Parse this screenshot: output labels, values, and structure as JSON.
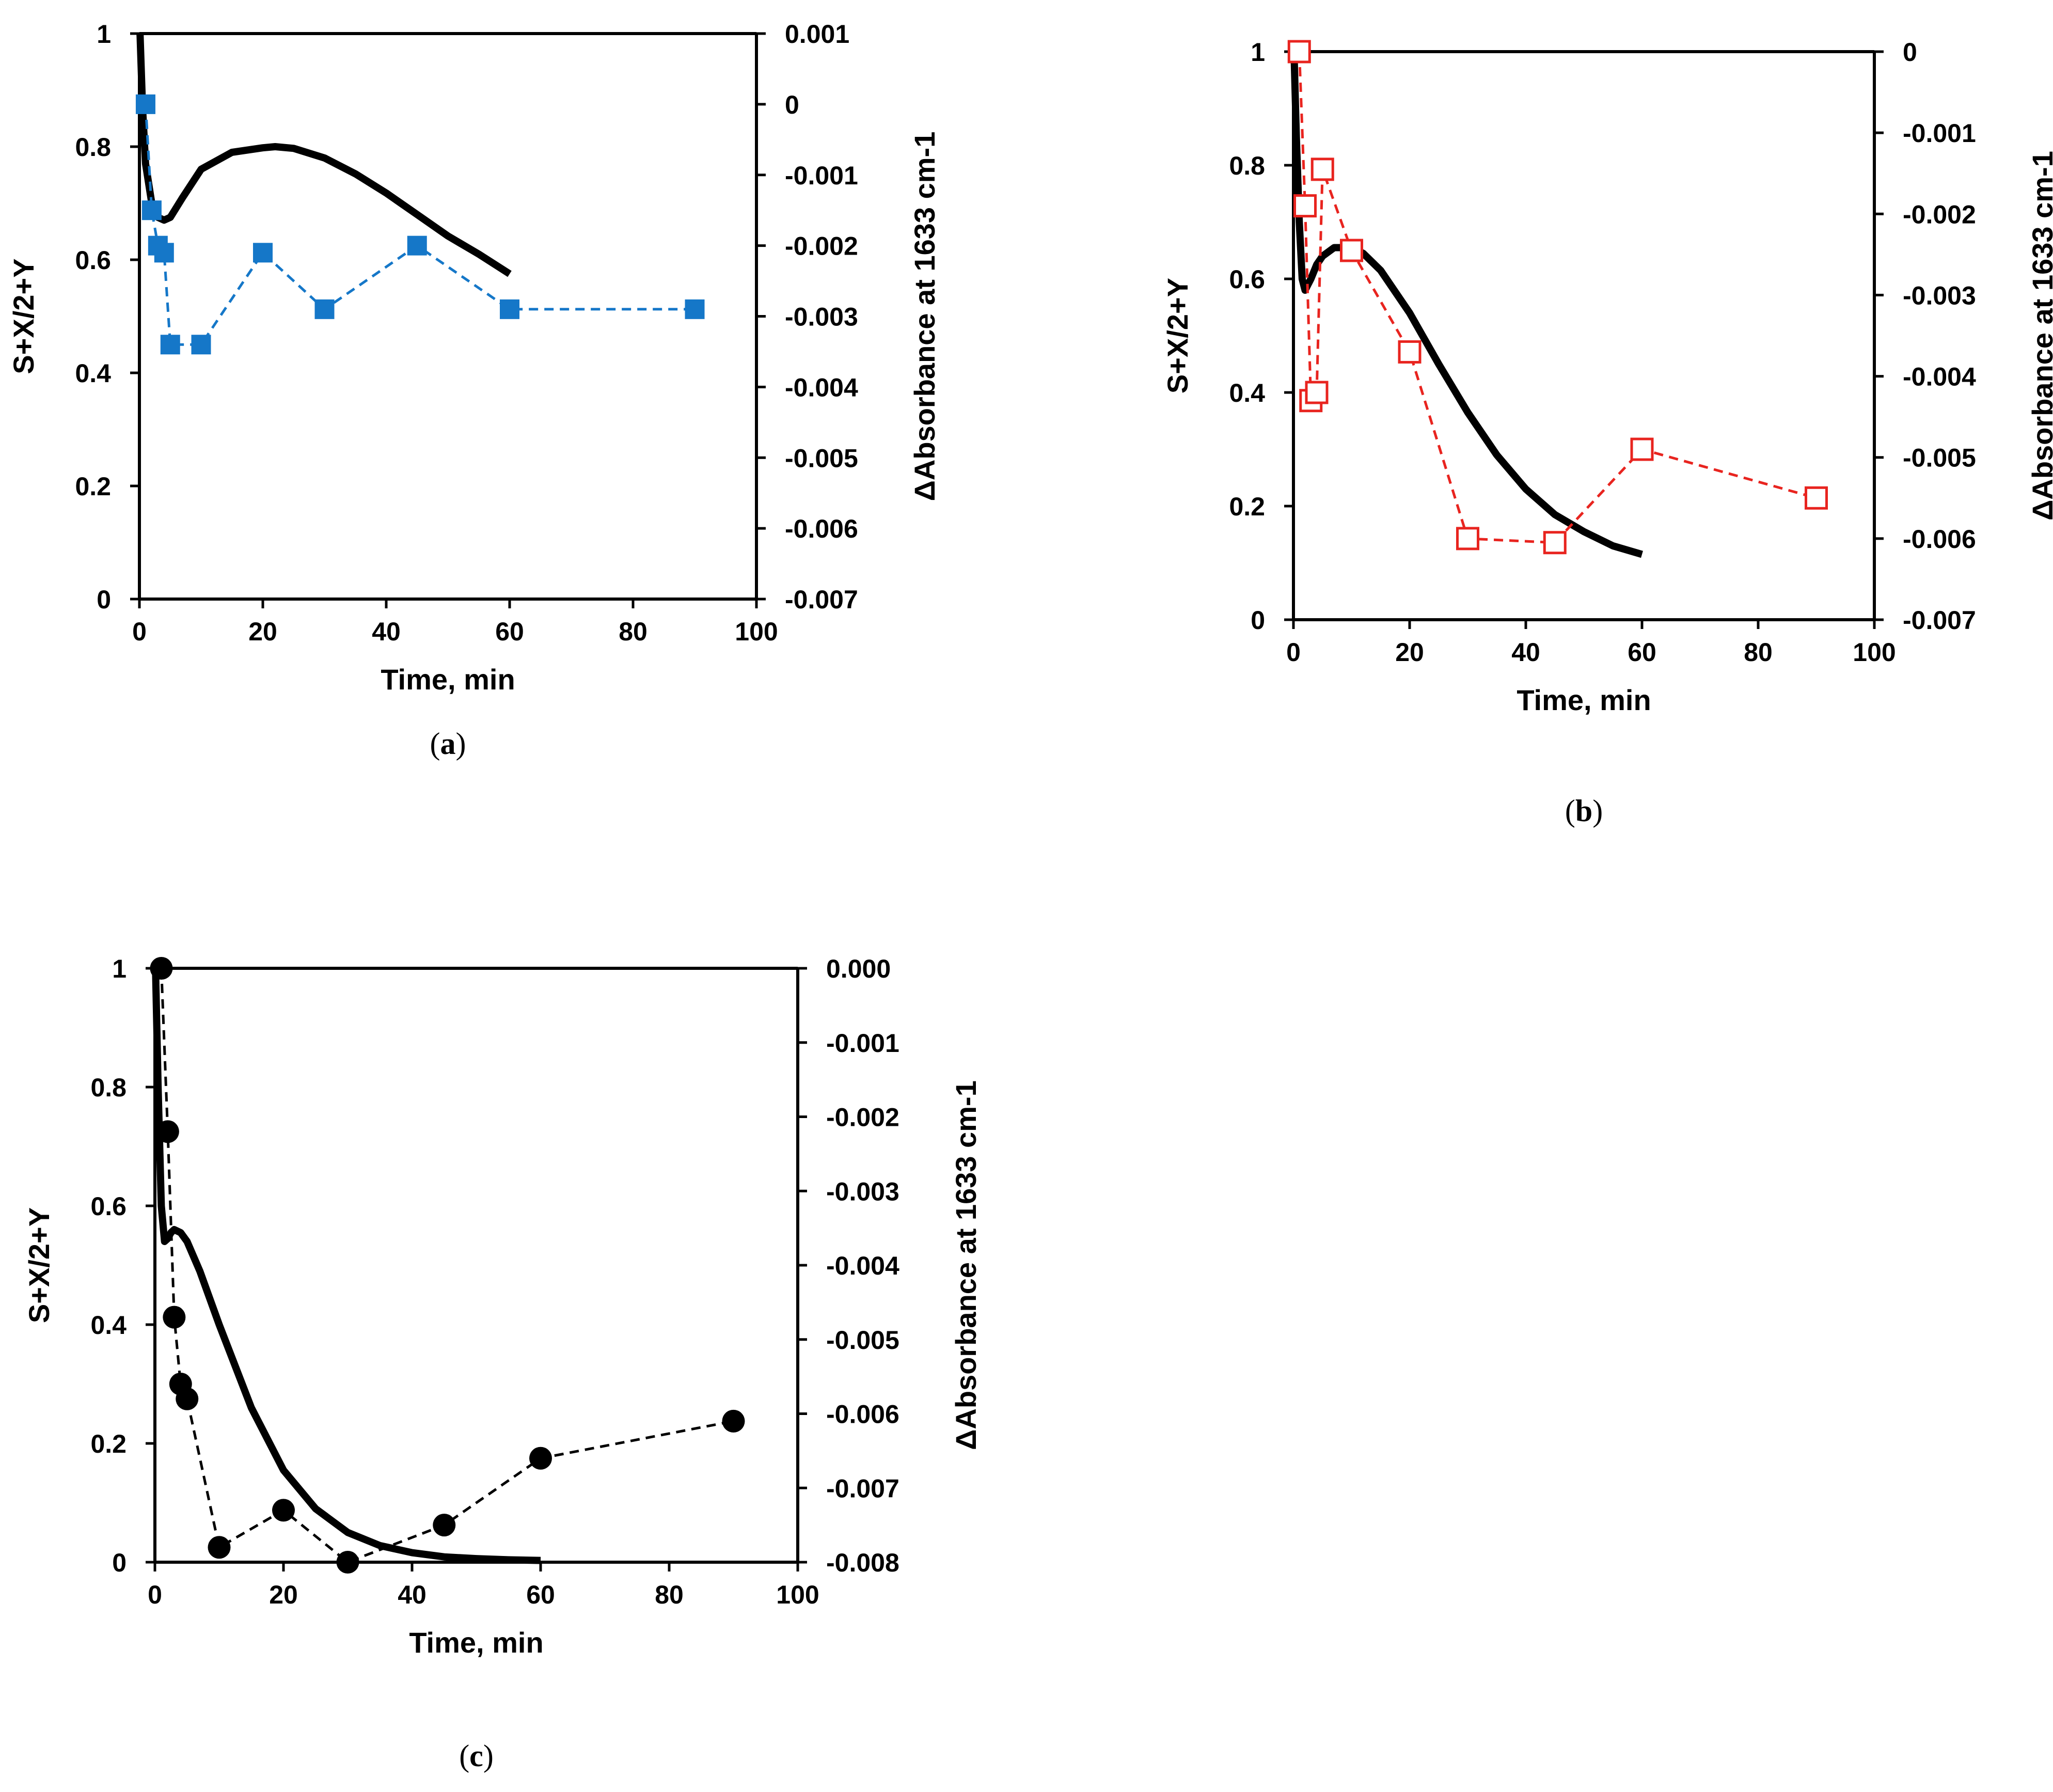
{
  "chart_data": [
    {
      "id": "a",
      "type": "line",
      "caption_prefix": "(",
      "caption_letter": "a",
      "caption_suffix": ")",
      "xlabel": "Time, min",
      "ylabel": "S+X/2+Y",
      "y2label": "ΔAbsorbance at 1633 cm-1",
      "xlim": [
        0,
        100
      ],
      "ylim": [
        0,
        1
      ],
      "y2lim": [
        -0.007,
        0.001
      ],
      "xticks": [
        "0",
        "20",
        "40",
        "60",
        "80",
        "100"
      ],
      "yticks": [
        "0",
        "0.2",
        "0.4",
        "0.6",
        "0.8",
        "1"
      ],
      "y2ticks": [
        "-0.007",
        "-0.006",
        "-0.005",
        "-0.004",
        "-0.003",
        "-0.002",
        "-0.001",
        "0",
        "0.001"
      ],
      "series": [
        {
          "kind": "model",
          "axis": "left",
          "style": "solid",
          "color": "#000000",
          "x": [
            0.1,
            0.5,
            1,
            2,
            3,
            4,
            5,
            7,
            10,
            15,
            20,
            22,
            25,
            30,
            35,
            40,
            45,
            50,
            55,
            60
          ],
          "y": [
            1.0,
            0.87,
            0.77,
            0.7,
            0.675,
            0.67,
            0.675,
            0.71,
            0.76,
            0.79,
            0.798,
            0.8,
            0.797,
            0.78,
            0.752,
            0.718,
            0.68,
            0.642,
            0.61,
            0.575
          ]
        },
        {
          "kind": "measured",
          "axis": "right",
          "style": "dashed",
          "marker": "filled-square",
          "color": "#1577c8",
          "x": [
            1,
            2,
            3,
            4,
            5,
            10,
            20,
            30,
            45,
            60,
            90
          ],
          "y": [
            0.0,
            -0.0015,
            -0.002,
            -0.0021,
            -0.0034,
            -0.0034,
            -0.0021,
            -0.0029,
            -0.002,
            -0.0029,
            -0.0029
          ]
        }
      ]
    },
    {
      "id": "b",
      "type": "line",
      "caption_prefix": "(",
      "caption_letter": "b",
      "caption_suffix": ")",
      "xlabel": "Time, min",
      "ylabel": "S+X/2+Y",
      "y2label": "ΔAbsorbance at 1633 cm-1",
      "xlim": [
        0,
        100
      ],
      "ylim": [
        0,
        1
      ],
      "y2lim": [
        -0.007,
        0.0
      ],
      "xticks": [
        "0",
        "20",
        "40",
        "60",
        "80",
        "100"
      ],
      "yticks": [
        "0",
        "0.2",
        "0.4",
        "0.6",
        "0.8",
        "1"
      ],
      "y2ticks": [
        "-0.007",
        "-0.006",
        "-0.005",
        "-0.004",
        "-0.003",
        "-0.002",
        "-0.001",
        "0"
      ],
      "series": [
        {
          "kind": "model",
          "axis": "left",
          "style": "solid",
          "color": "#000000",
          "x": [
            0.1,
            0.5,
            1,
            1.5,
            2,
            3,
            4,
            5,
            7,
            10,
            12,
            15,
            20,
            25,
            30,
            35,
            40,
            45,
            50,
            55,
            60
          ],
          "y": [
            1.0,
            0.85,
            0.7,
            0.6,
            0.58,
            0.6,
            0.625,
            0.64,
            0.655,
            0.655,
            0.645,
            0.615,
            0.54,
            0.45,
            0.365,
            0.29,
            0.23,
            0.185,
            0.155,
            0.13,
            0.115
          ]
        },
        {
          "kind": "measured",
          "axis": "right",
          "style": "dashed",
          "marker": "open-square",
          "color": "#e8241f",
          "x": [
            1,
            2,
            3,
            4,
            5,
            10,
            20,
            30,
            45,
            60,
            90
          ],
          "y": [
            0.0,
            -0.0019,
            -0.0043,
            -0.0042,
            -0.00145,
            -0.00245,
            -0.0037,
            -0.006,
            -0.00605,
            -0.0049,
            -0.0055
          ]
        }
      ]
    },
    {
      "id": "c",
      "type": "line",
      "caption_prefix": "(",
      "caption_letter": "c",
      "caption_suffix": ")",
      "xlabel": "Time, min",
      "ylabel": "S+X/2+Y",
      "y2label": "ΔAbsorbance at 1633 cm-1",
      "xlim": [
        0,
        100
      ],
      "ylim": [
        0,
        1
      ],
      "y2lim": [
        -0.008,
        0.0
      ],
      "xticks": [
        "0",
        "20",
        "40",
        "60",
        "80",
        "100"
      ],
      "yticks": [
        "0",
        "0.2",
        "0.4",
        "0.6",
        "0.8",
        "1"
      ],
      "y2ticks": [
        "-0.008",
        "-0.007",
        "-0.006",
        "-0.005",
        "-0.004",
        "-0.003",
        "-0.002",
        "-0.001",
        "0.000"
      ],
      "series": [
        {
          "kind": "model",
          "axis": "left",
          "style": "solid",
          "color": "#000000",
          "x": [
            0.1,
            0.5,
            1,
            1.5,
            2,
            2.5,
            3,
            4,
            5,
            7,
            10,
            15,
            20,
            25,
            30,
            35,
            40,
            45,
            50,
            55,
            60
          ],
          "y": [
            1.0,
            0.8,
            0.6,
            0.54,
            0.545,
            0.555,
            0.56,
            0.555,
            0.54,
            0.49,
            0.4,
            0.26,
            0.155,
            0.09,
            0.05,
            0.028,
            0.016,
            0.009,
            0.006,
            0.004,
            0.003
          ]
        },
        {
          "kind": "measured",
          "axis": "right",
          "style": "dashed",
          "marker": "filled-circle",
          "color": "#000000",
          "x": [
            1,
            2,
            3,
            4,
            5,
            10,
            20,
            30,
            45,
            60,
            90
          ],
          "y": [
            0.0,
            -0.0022,
            -0.0047,
            -0.0056,
            -0.0058,
            -0.0078,
            -0.0073,
            -0.008,
            -0.0075,
            -0.0066,
            -0.0061
          ]
        }
      ]
    }
  ]
}
